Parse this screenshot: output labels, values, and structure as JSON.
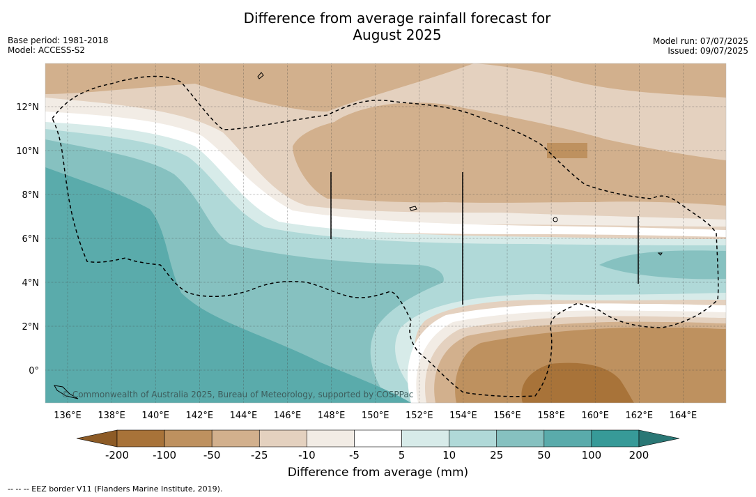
{
  "header": {
    "title_line1": "Difference from average rainfall forecast for",
    "title_line2": "August 2025",
    "base_period": "Base period: 1981-2018",
    "model": "Model: ACCESS-S2",
    "model_run": "Model run: 07/07/2025",
    "issued": "Issued: 09/07/2025"
  },
  "map": {
    "longitude_ticks": [
      "136°E",
      "138°E",
      "140°E",
      "142°E",
      "144°E",
      "146°E",
      "148°E",
      "150°E",
      "152°E",
      "154°E",
      "156°E",
      "158°E",
      "160°E",
      "162°E",
      "164°E"
    ],
    "latitude_ticks": [
      "12°N",
      "10°N",
      "8°N",
      "6°N",
      "4°N",
      "2°N",
      "0°"
    ],
    "copyright": "© Commonwealth of Australia 2025, Bureau of Meteorology, supported by COSPPac"
  },
  "legend": {
    "title": "Difference from average (mm)",
    "labels": [
      "-200",
      "-100",
      "-50",
      "-25",
      "-10",
      "-5",
      "5",
      "10",
      "25",
      "50",
      "100",
      "200"
    ],
    "colors": [
      "#a87339",
      "#be915f",
      "#d2b08d",
      "#e4d1bf",
      "#f2ece5",
      "#ffffff",
      "#d7ebe9",
      "#b0d9d8",
      "#86c1c0",
      "#5aabab",
      "#379a98",
      "#236b6b"
    ],
    "extend_low_color": "#8d5b26",
    "extend_high_color": "#2a7775"
  },
  "footnote": "--  --  -- EEZ border V11 (Flanders Marine Institute, 2019)."
}
